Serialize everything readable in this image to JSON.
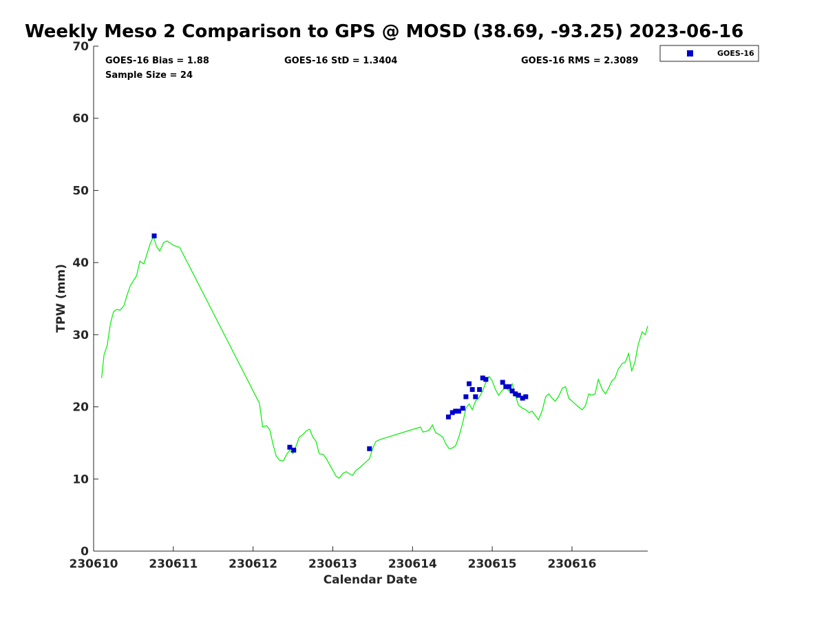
{
  "chart_data": {
    "type": "scatter",
    "title": "Weekly Meso 2 Comparison to GPS @ MOSD (38.69, -93.25) 2023-06-16",
    "xlabel": "Calendar Date",
    "ylabel": "TPW (mm)",
    "xlim": [
      230610,
      230616.95
    ],
    "ylim": [
      0,
      70
    ],
    "x_ticks": [
      230610,
      230611,
      230612,
      230613,
      230614,
      230615,
      230616
    ],
    "x_tick_labels": [
      "230610",
      "230611",
      "230612",
      "230613",
      "230614",
      "230615",
      "230616"
    ],
    "y_ticks": [
      0,
      10,
      20,
      30,
      40,
      50,
      60,
      70
    ],
    "y_tick_labels": [
      "0",
      "10",
      "20",
      "30",
      "40",
      "50",
      "60",
      "70"
    ],
    "grid": false,
    "legend_position": "outside-top-right",
    "stats": {
      "bias": "GOES-16 Bias = 1.88",
      "std": "GOES-16 StD = 1.3404",
      "rms": "GOES-16 RMS = 2.3089",
      "sample_size": "Sample Size = 24"
    },
    "series": [
      {
        "name": "GOES-16",
        "type": "scatter",
        "color": "#0000cc",
        "marker": "square",
        "x": [
          230610.76,
          230612.46,
          230612.51,
          230613.46,
          230614.45,
          230614.5,
          230614.54,
          230614.58,
          230614.63,
          230614.67,
          230614.71,
          230614.75,
          230614.79,
          230614.84,
          230614.88,
          230614.92,
          230615.13,
          230615.17,
          230615.21,
          230615.25,
          230615.29,
          230615.33,
          230615.38,
          230615.42
        ],
        "y": [
          43.7,
          14.4,
          14.0,
          14.2,
          18.6,
          19.2,
          19.4,
          19.4,
          19.8,
          21.4,
          23.2,
          22.4,
          21.4,
          22.4,
          24.0,
          23.8,
          23.4,
          22.8,
          22.8,
          22.2,
          21.8,
          21.6,
          21.2,
          21.4
        ]
      },
      {
        "type": "line",
        "color": "#00ee00",
        "x": [
          230610.1,
          230610.13,
          230610.17,
          230610.21,
          230610.25,
          230610.29,
          230610.33,
          230610.38,
          230610.42,
          230610.46,
          230610.5,
          230610.54,
          230610.58,
          230610.63,
          230610.67,
          230610.71,
          230610.75,
          230610.79,
          230610.83,
          230610.88,
          230610.92,
          230610.96,
          230611.0,
          230611.08,
          230612.08,
          230612.12,
          230612.17,
          230612.21,
          230612.25,
          230612.29,
          230612.33,
          230612.38,
          230612.42,
          230612.46,
          230612.5,
          230612.54,
          230612.58,
          230612.63,
          230612.67,
          230612.71,
          230612.75,
          230612.79,
          230612.83,
          230612.88,
          230612.92,
          230612.96,
          230613.0,
          230613.04,
          230613.08,
          230613.13,
          230613.17,
          230613.21,
          230613.25,
          230613.29,
          230613.33,
          230613.38,
          230613.42,
          230613.46,
          230613.5,
          230613.54,
          230613.58,
          230613.63,
          230614.1,
          230614.13,
          230614.17,
          230614.21,
          230614.25,
          230614.29,
          230614.33,
          230614.38,
          230614.42,
          230614.46,
          230614.5,
          230614.54,
          230614.58,
          230614.63,
          230614.67,
          230614.71,
          230614.75,
          230614.79,
          230614.83,
          230614.88,
          230614.92,
          230614.96,
          230615.0,
          230615.04,
          230615.08,
          230615.12,
          230615.17,
          230615.21,
          230615.25,
          230615.29,
          230615.33,
          230615.38,
          230615.42,
          230615.46,
          230615.5,
          230615.54,
          230615.58,
          230615.63,
          230615.67,
          230615.71,
          230615.75,
          230615.79,
          230615.83,
          230615.88,
          230615.92,
          230615.96,
          230616.0,
          230616.04,
          230616.08,
          230616.13,
          230616.17,
          230616.21,
          230616.25,
          230616.29,
          230616.33,
          230616.38,
          230616.42,
          230616.46,
          230616.5,
          230616.54,
          230616.58,
          230616.63,
          230616.67,
          230616.71,
          230616.75,
          230616.79,
          230616.83,
          230616.88,
          230616.92,
          230616.95
        ],
        "y": [
          24.0,
          27.2,
          28.5,
          31.5,
          33.2,
          33.5,
          33.4,
          34.0,
          35.5,
          36.8,
          37.5,
          38.2,
          40.2,
          39.8,
          41.2,
          42.6,
          43.6,
          42.2,
          41.6,
          42.8,
          43.0,
          42.7,
          42.4,
          42.1,
          20.5,
          17.2,
          17.4,
          16.8,
          14.8,
          13.2,
          12.6,
          12.5,
          13.4,
          14.0,
          13.5,
          14.6,
          15.8,
          16.2,
          16.7,
          16.9,
          15.8,
          15.2,
          13.5,
          13.4,
          12.8,
          12.0,
          11.2,
          10.4,
          10.1,
          10.8,
          11.0,
          10.7,
          10.5,
          11.2,
          11.5,
          12.0,
          12.4,
          12.8,
          14.2,
          15.2,
          15.4,
          15.6,
          17.2,
          16.5,
          16.6,
          16.8,
          17.5,
          16.4,
          16.2,
          15.8,
          14.8,
          14.2,
          14.3,
          14.6,
          15.8,
          17.8,
          19.8,
          20.4,
          19.6,
          20.8,
          21.2,
          22.2,
          23.4,
          24.2,
          23.6,
          22.4,
          21.6,
          22.2,
          22.8,
          22.2,
          23.2,
          21.6,
          20.2,
          19.8,
          19.6,
          19.2,
          19.4,
          18.8,
          18.2,
          19.6,
          21.4,
          21.8,
          21.2,
          20.8,
          21.4,
          22.6,
          22.8,
          21.2,
          20.8,
          20.4,
          20.0,
          19.6,
          20.2,
          21.8,
          21.6,
          21.8,
          23.8,
          22.4,
          21.8,
          22.6,
          23.6,
          24.0,
          25.2,
          26.0,
          26.2,
          27.4,
          25.0,
          26.2,
          28.6,
          30.4,
          30.0,
          31.2
        ]
      }
    ]
  }
}
